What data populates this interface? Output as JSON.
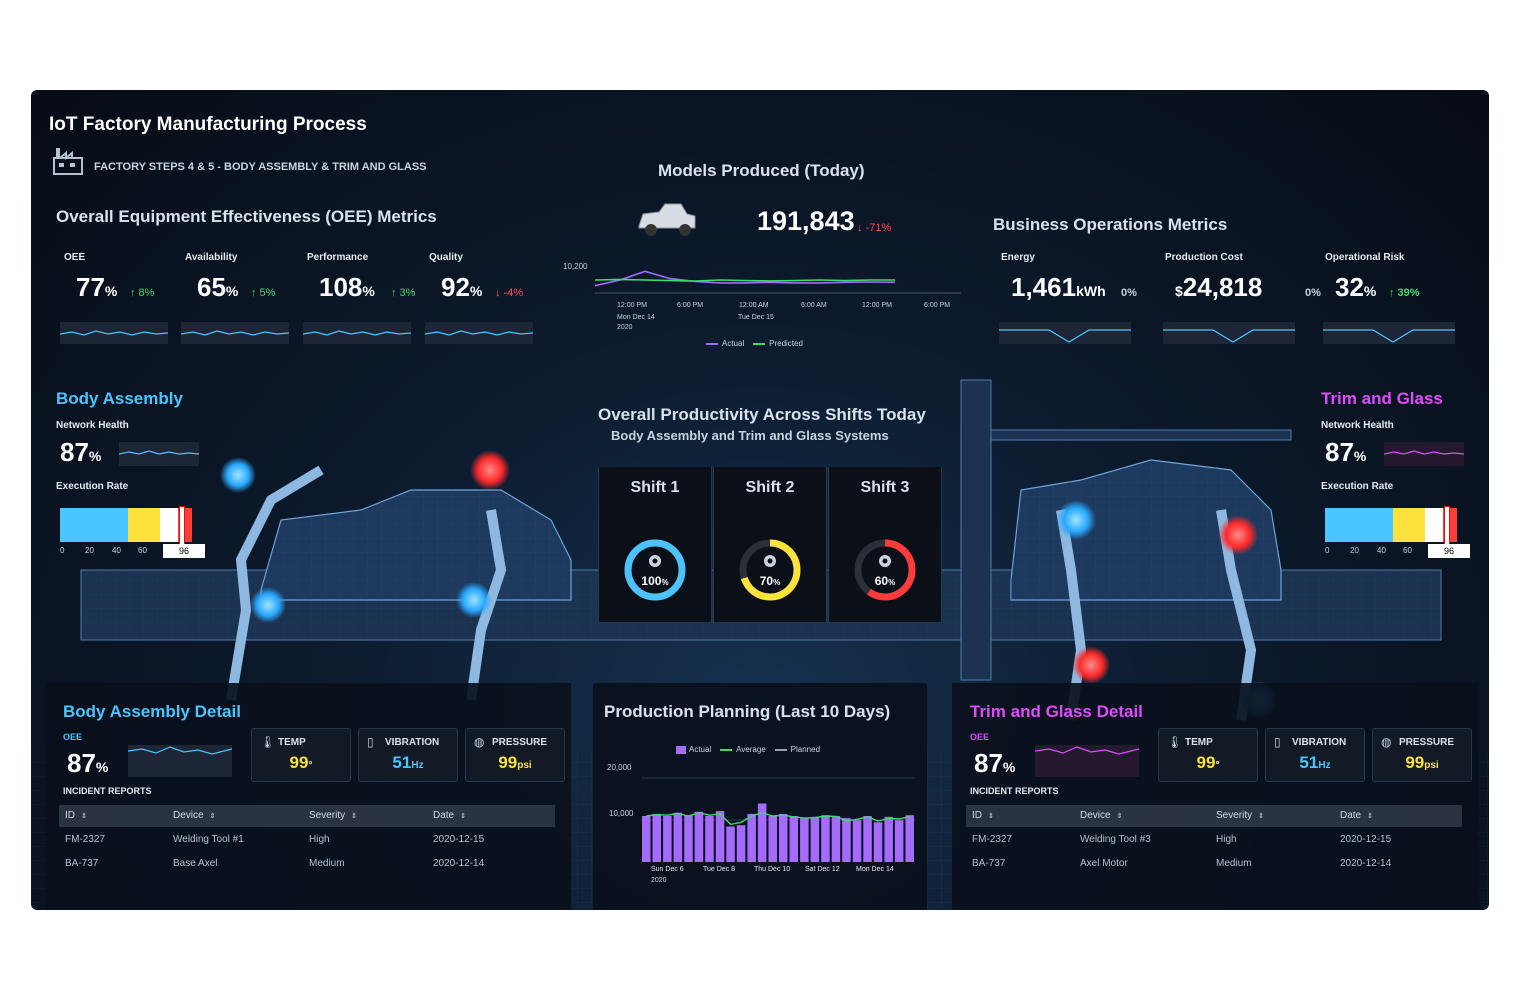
{
  "header": {
    "title": "IoT Factory Manufacturing Process",
    "subtitle": "FACTORY STEPS 4 & 5 - BODY ASSEMBLY & TRIM AND GLASS",
    "icon": "factory-icon"
  },
  "oee": {
    "title": "Overall Equipment Effectiveness (OEE) Metrics",
    "metrics": [
      {
        "label": "OEE",
        "value": "77",
        "unit": "%",
        "change": "↑ 8%",
        "trend": "up"
      },
      {
        "label": "Availability",
        "value": "65",
        "unit": "%",
        "change": "↑ 5%",
        "trend": "up"
      },
      {
        "label": "Performance",
        "value": "108",
        "unit": "%",
        "change": "↑ 3%",
        "trend": "up"
      },
      {
        "label": "Quality",
        "value": "92",
        "unit": "%",
        "change": "↓ -4%",
        "trend": "down"
      }
    ]
  },
  "models": {
    "title": "Models Produced (Today)",
    "value": "191,843",
    "change": "↓ -71%",
    "y_tick": "10,200",
    "x_ticks": [
      "12:00 PM",
      "6:00 PM",
      "12:00 AM",
      "6:00 AM",
      "12:00 PM",
      "6:00 PM"
    ],
    "x_sub1": "Mon Dec 14",
    "x_sub1b": "2020",
    "x_sub2": "Tue Dec 15",
    "legend_actual": "Actual",
    "legend_predicted": "Predicted"
  },
  "business": {
    "title": "Business Operations Metrics",
    "metrics": [
      {
        "label": "Energy",
        "prefix": "",
        "value": "1,461",
        "unit": "kWh",
        "change": "0%"
      },
      {
        "label": "Production Cost",
        "prefix": "$",
        "value": "24,818",
        "unit": "",
        "change": "0%"
      },
      {
        "label": "Operational Risk",
        "prefix": "",
        "value": "32",
        "unit": "%",
        "change": "↑ 39%"
      }
    ]
  },
  "body_assembly": {
    "title": "Body Assembly",
    "network_label": "Network Health",
    "network_value": "87",
    "network_unit": "%",
    "exec_label": "Execution Rate",
    "exec_value": "96",
    "ticks": [
      "0",
      "20",
      "40",
      "60"
    ],
    "exec_level": 0.96
  },
  "trim_glass": {
    "title": "Trim and Glass",
    "network_label": "Network Health",
    "network_value": "87",
    "network_unit": "%",
    "exec_label": "Execution Rate",
    "exec_value": "96",
    "ticks": [
      "0",
      "20",
      "40",
      "60"
    ],
    "exec_level": 0.96
  },
  "productivity": {
    "title": "Overall Productivity Across Shifts Today",
    "subtitle": "Body Assembly and Trim and Glass Systems",
    "shifts": [
      {
        "label": "Shift 1",
        "value": "100",
        "unit": "%",
        "level": 1.0,
        "color": "#4cc3ff"
      },
      {
        "label": "Shift 2",
        "value": "70",
        "unit": "%",
        "level": 0.7,
        "color": "#ffe23b"
      },
      {
        "label": "Shift 3",
        "value": "60",
        "unit": "%",
        "level": 0.6,
        "color": "#ff3b3b"
      }
    ]
  },
  "body_detail": {
    "title": "Body Assembly Detail",
    "oee_label": "OEE",
    "oee_value": "87",
    "oee_unit": "%",
    "temp_label": "TEMP",
    "temp_value": "99",
    "temp_unit": "°",
    "vib_label": "VIBRATION",
    "vib_value": "51",
    "vib_unit": "Hz",
    "press_label": "PRESSURE",
    "press_value": "99",
    "press_unit": "psi",
    "incident_label": "INCIDENT REPORTS",
    "columns": [
      "ID",
      "Device",
      "Severity",
      "Date"
    ],
    "rows": [
      [
        "FM-2327",
        "Welding Tool #1",
        "High",
        "2020-12-15"
      ],
      [
        "BA-737",
        "Base Axel",
        "Medium",
        "2020-12-14"
      ]
    ]
  },
  "trim_detail": {
    "title": "Trim and Glass Detail",
    "oee_label": "OEE",
    "oee_value": "87",
    "oee_unit": "%",
    "temp_label": "TEMP",
    "temp_value": "99",
    "temp_unit": "°",
    "vib_label": "VIBRATION",
    "vib_value": "51",
    "vib_unit": "Hz",
    "press_label": "PRESSURE",
    "press_value": "99",
    "press_unit": "psi",
    "incident_label": "INCIDENT REPORTS",
    "columns": [
      "ID",
      "Device",
      "Severity",
      "Date"
    ],
    "rows": [
      [
        "FM-2327",
        "Welding Tool #3",
        "High",
        "2020-12-15"
      ],
      [
        "BA-737",
        "Axel Motor",
        "Medium",
        "2020-12-14"
      ]
    ]
  },
  "planning": {
    "title": "Production Planning (Last 10 Days)",
    "legend": [
      "Actual",
      "Average",
      "Planned"
    ],
    "y_ticks": [
      "20,000",
      "10,000"
    ],
    "x_ticks": [
      "Sun Dec 6",
      "Tue Dec 8",
      "Thu Dec 10",
      "Sat Dec 12",
      "Mon Dec 14"
    ],
    "x_sub": "2020"
  },
  "chart_data": [
    {
      "type": "bar",
      "title": "Production Planning (Last 10 Days)",
      "ylim": [
        0,
        22000
      ],
      "series": [
        {
          "name": "Actual",
          "values": [
            11000,
            11500,
            11000,
            11800,
            11200,
            12000,
            11000,
            12200,
            8500,
            8800,
            11500,
            14000,
            11000,
            11500,
            11000,
            10500,
            10800,
            11200,
            11000,
            10500,
            10000,
            11000,
            9500,
            10800,
            10000,
            11200
          ]
        },
        {
          "name": "Average",
          "values": [
            11000,
            11300,
            11200,
            11600,
            11000,
            11800,
            11200,
            11500,
            9000,
            9500,
            11000,
            11800,
            11000,
            11200,
            10800,
            10500,
            10600,
            11000,
            10900,
            9800,
            10200,
            10800,
            9800,
            10400,
            10300,
            10800
          ]
        }
      ],
      "legend": "top-center"
    },
    {
      "type": "line",
      "title": "Models Produced (Today)",
      "series": [
        {
          "name": "Actual",
          "values": [
            10150,
            10170,
            10200,
            10175,
            10165,
            10160,
            10160,
            10162,
            10160,
            10160,
            10162,
            10163,
            10162
          ]
        },
        {
          "name": "Predicted",
          "values": [
            10170,
            10172,
            10170,
            10168,
            10166,
            10170,
            10168,
            10167,
            10168,
            10170,
            10168,
            10170,
            10170
          ]
        }
      ]
    }
  ]
}
